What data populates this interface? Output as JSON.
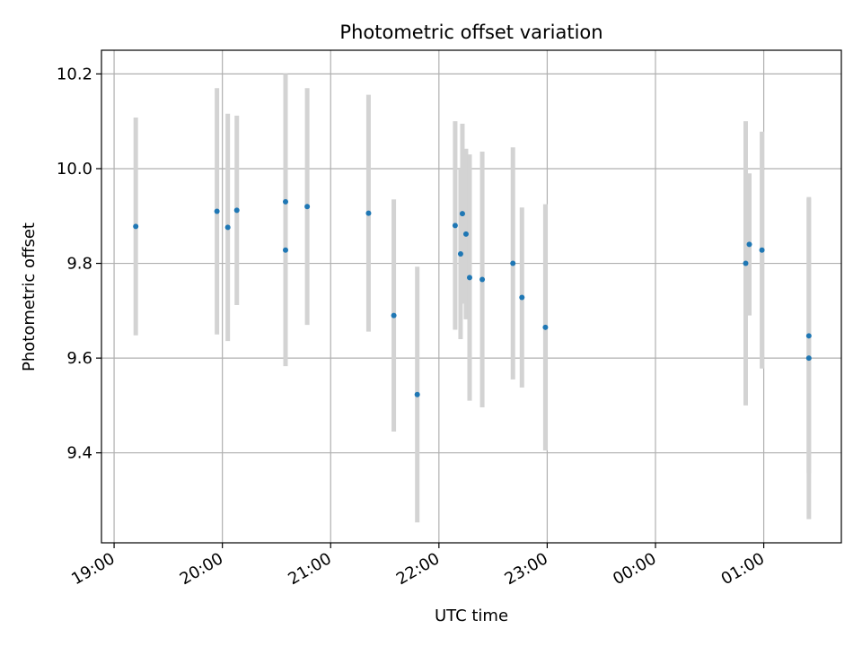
{
  "chart_data": {
    "type": "scatter",
    "title": "Photometric offset variation",
    "xlabel": "UTC time",
    "ylabel": "Photometric offset",
    "x_axis_kind": "time",
    "xlim": [
      "18:53",
      "01:43"
    ],
    "ylim": [
      9.21,
      10.25
    ],
    "x_ticks": [
      "19:00",
      "20:00",
      "21:00",
      "22:00",
      "23:00",
      "00:00",
      "01:00"
    ],
    "y_ticks": [
      9.4,
      9.6,
      9.8,
      10.0,
      10.2
    ],
    "y_tick_labels": [
      "9.4",
      "9.6",
      "9.8",
      "10.0",
      "10.2"
    ],
    "grid": true,
    "marker_color": "#1f77b4",
    "errorbar_color": "#d3d3d3",
    "points": [
      {
        "x": "19:12",
        "y": 9.878,
        "err": 0.23
      },
      {
        "x": "19:57",
        "y": 9.91,
        "err": 0.26
      },
      {
        "x": "20:03",
        "y": 9.876,
        "err": 0.24
      },
      {
        "x": "20:08",
        "y": 9.912,
        "err": 0.2
      },
      {
        "x": "20:35",
        "y": 9.93,
        "err": 0.27
      },
      {
        "x": "20:35",
        "y": 9.828,
        "err": 0.245
      },
      {
        "x": "20:47",
        "y": 9.92,
        "err": 0.25
      },
      {
        "x": "21:21",
        "y": 9.906,
        "err": 0.25
      },
      {
        "x": "21:35",
        "y": 9.69,
        "err": 0.245
      },
      {
        "x": "21:48",
        "y": 9.523,
        "err": 0.27
      },
      {
        "x": "22:09",
        "y": 9.88,
        "err": 0.22
      },
      {
        "x": "22:12",
        "y": 9.82,
        "err": 0.18
      },
      {
        "x": "22:13",
        "y": 9.905,
        "err": 0.19
      },
      {
        "x": "22:15",
        "y": 9.862,
        "err": 0.18
      },
      {
        "x": "22:17",
        "y": 9.77,
        "err": 0.26
      },
      {
        "x": "22:24",
        "y": 9.766,
        "err": 0.27
      },
      {
        "x": "22:41",
        "y": 9.8,
        "err": 0.245
      },
      {
        "x": "22:46",
        "y": 9.728,
        "err": 0.19
      },
      {
        "x": "22:59",
        "y": 9.665,
        "err": 0.26
      },
      {
        "x": "00:50",
        "y": 9.8,
        "err": 0.3
      },
      {
        "x": "00:52",
        "y": 9.84,
        "err": 0.15
      },
      {
        "x": "00:59",
        "y": 9.828,
        "err": 0.25
      },
      {
        "x": "01:25",
        "y": 9.647,
        "err": 0.29
      },
      {
        "x": "01:25",
        "y": 9.6,
        "err": 0.34
      }
    ]
  }
}
